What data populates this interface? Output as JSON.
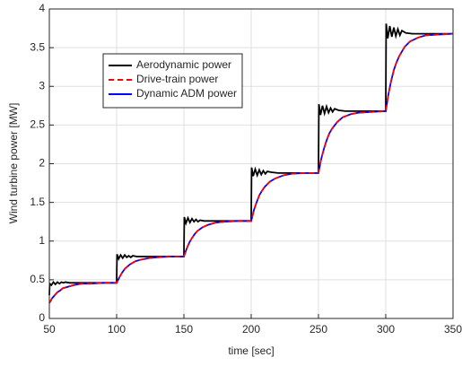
{
  "chart_data": {
    "type": "line",
    "xlabel": "time [sec]",
    "ylabel": "Wind turbine power [MW]",
    "xlim": [
      50,
      350
    ],
    "xticks": [
      50,
      100,
      150,
      200,
      250,
      300,
      350
    ],
    "ylim": [
      0,
      4
    ],
    "yticks": [
      0,
      0.5,
      1,
      1.5,
      2,
      2.5,
      3,
      3.5,
      4
    ],
    "grid": true,
    "legend": "upper left",
    "series": [
      {
        "name": "Aerodynamic power",
        "color": "#000000",
        "style": "solid",
        "x": [
          50,
          50.3,
          51.5,
          53,
          54.5,
          56,
          57.5,
          59,
          60.5,
          62,
          65,
          70,
          90,
          100,
          100.3,
          101.5,
          103,
          104.5,
          106,
          107.5,
          109,
          110.5,
          112,
          115,
          120,
          140,
          150,
          150.3,
          151.5,
          153,
          154.5,
          156,
          157.5,
          159,
          160.5,
          162,
          165,
          170,
          190,
          200,
          200.3,
          201.5,
          203,
          204.5,
          206,
          207.5,
          209,
          210.5,
          212,
          215,
          220,
          240,
          250,
          250.3,
          251.5,
          253,
          254.5,
          256,
          257.5,
          259,
          260.5,
          262,
          265,
          270,
          290,
          300,
          300.3,
          301.5,
          303,
          304.5,
          306,
          307.5,
          309,
          310.5,
          312,
          315,
          320,
          340,
          350
        ],
        "values": [
          0.3,
          0.45,
          0.43,
          0.47,
          0.44,
          0.47,
          0.45,
          0.47,
          0.46,
          0.47,
          0.46,
          0.46,
          0.46,
          0.46,
          0.83,
          0.77,
          0.82,
          0.78,
          0.82,
          0.79,
          0.81,
          0.79,
          0.81,
          0.8,
          0.8,
          0.8,
          0.8,
          1.31,
          1.23,
          1.3,
          1.24,
          1.29,
          1.25,
          1.28,
          1.25,
          1.27,
          1.26,
          1.26,
          1.26,
          1.26,
          1.95,
          1.84,
          1.93,
          1.85,
          1.92,
          1.86,
          1.91,
          1.87,
          1.9,
          1.89,
          1.88,
          1.88,
          1.88,
          2.77,
          2.63,
          2.75,
          2.65,
          2.74,
          2.66,
          2.72,
          2.67,
          2.71,
          2.69,
          2.68,
          2.68,
          2.68,
          3.81,
          3.62,
          3.78,
          3.64,
          3.76,
          3.65,
          3.74,
          3.66,
          3.72,
          3.69,
          3.68,
          3.68,
          3.68
        ]
      },
      {
        "name": "Drive-train power",
        "color": "#ff0000",
        "style": "dashed",
        "x": [
          50,
          52,
          54,
          56,
          58,
          60,
          64,
          68,
          74,
          80,
          90,
          100,
          102,
          104,
          106,
          108,
          110,
          114,
          118,
          124,
          130,
          140,
          150,
          152,
          154,
          156,
          158,
          160,
          164,
          168,
          174,
          180,
          190,
          200,
          202,
          204,
          206,
          208,
          210,
          214,
          218,
          224,
          230,
          240,
          250,
          252,
          254,
          256,
          258,
          260,
          264,
          268,
          274,
          280,
          290,
          300,
          302,
          304,
          306,
          308,
          310,
          314,
          318,
          324,
          330,
          340,
          350
        ],
        "values": [
          0.2,
          0.26,
          0.3,
          0.34,
          0.36,
          0.39,
          0.41,
          0.43,
          0.45,
          0.45,
          0.46,
          0.46,
          0.53,
          0.59,
          0.64,
          0.67,
          0.7,
          0.74,
          0.76,
          0.78,
          0.79,
          0.8,
          0.8,
          0.9,
          0.98,
          1.04,
          1.09,
          1.13,
          1.18,
          1.21,
          1.24,
          1.25,
          1.26,
          1.26,
          1.4,
          1.5,
          1.59,
          1.65,
          1.7,
          1.77,
          1.81,
          1.85,
          1.87,
          1.88,
          1.88,
          2.06,
          2.19,
          2.3,
          2.39,
          2.45,
          2.54,
          2.6,
          2.64,
          2.66,
          2.67,
          2.68,
          2.9,
          3.07,
          3.21,
          3.31,
          3.39,
          3.51,
          3.58,
          3.63,
          3.66,
          3.67,
          3.68
        ]
      },
      {
        "name": "Dynamic ADM power",
        "color": "#0000ff",
        "style": "solid",
        "x": [
          50,
          52,
          54,
          56,
          58,
          60,
          64,
          68,
          74,
          80,
          90,
          100,
          102,
          104,
          106,
          108,
          110,
          114,
          118,
          124,
          130,
          140,
          150,
          152,
          154,
          156,
          158,
          160,
          164,
          168,
          174,
          180,
          190,
          200,
          202,
          204,
          206,
          208,
          210,
          214,
          218,
          224,
          230,
          240,
          250,
          252,
          254,
          256,
          258,
          260,
          264,
          268,
          274,
          280,
          290,
          300,
          302,
          304,
          306,
          308,
          310,
          314,
          318,
          324,
          330,
          340,
          350
        ],
        "values": [
          0.2,
          0.26,
          0.3,
          0.34,
          0.36,
          0.39,
          0.41,
          0.43,
          0.45,
          0.45,
          0.46,
          0.46,
          0.53,
          0.59,
          0.64,
          0.67,
          0.7,
          0.74,
          0.76,
          0.78,
          0.79,
          0.8,
          0.8,
          0.9,
          0.98,
          1.04,
          1.09,
          1.13,
          1.18,
          1.21,
          1.24,
          1.25,
          1.26,
          1.26,
          1.4,
          1.5,
          1.59,
          1.65,
          1.7,
          1.77,
          1.81,
          1.85,
          1.87,
          1.88,
          1.88,
          2.06,
          2.19,
          2.3,
          2.39,
          2.45,
          2.54,
          2.6,
          2.64,
          2.66,
          2.67,
          2.68,
          2.9,
          3.07,
          3.21,
          3.31,
          3.39,
          3.51,
          3.58,
          3.63,
          3.66,
          3.67,
          3.68
        ]
      }
    ]
  }
}
